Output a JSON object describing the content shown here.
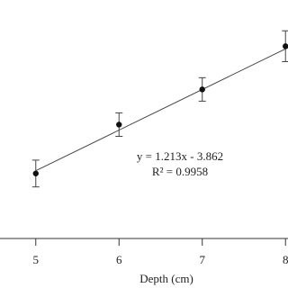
{
  "chart_data": {
    "type": "scatter",
    "x_label": "Depth (cm)",
    "x": [
      5,
      6,
      7,
      8
    ],
    "values": [
      2.12,
      3.58,
      4.63,
      5.92
    ],
    "errors": [
      0.4,
      0.35,
      0.35,
      0.46
    ],
    "color": "#111111",
    "trendline": {
      "slope": 1.213,
      "intercept": -3.862
    },
    "annotations": [
      "y = 1.213x - 3.862",
      "R² = 0.9958"
    ],
    "xlim": [
      4.57,
      8.03
    ],
    "xticks": [
      5,
      6,
      7,
      8
    ],
    "ylim": [
      0.18,
      7.3
    ]
  }
}
